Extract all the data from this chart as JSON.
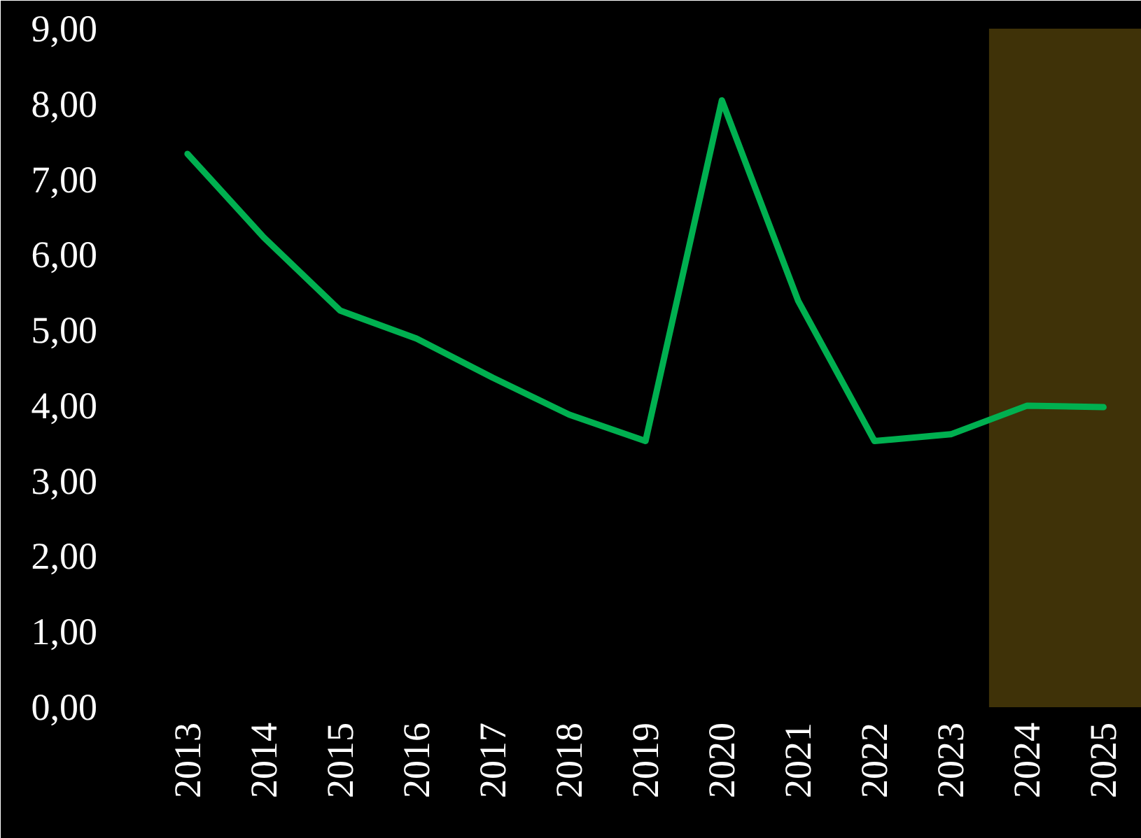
{
  "chart_data": {
    "type": "line",
    "categories": [
      "2013",
      "2014",
      "2015",
      "2016",
      "2017",
      "2018",
      "2019",
      "2020",
      "2021",
      "2022",
      "2023",
      "2024",
      "2025"
    ],
    "series": [
      {
        "color": "#00b050",
        "values": [
          7.34,
          6.23,
          5.26,
          4.89,
          4.37,
          3.88,
          3.53,
          8.05,
          5.39,
          3.53,
          3.62,
          4.0,
          3.98
        ]
      }
    ],
    "ylim": [
      0,
      9
    ],
    "yticks": [
      {
        "value": 0,
        "label": "0,00"
      },
      {
        "value": 1,
        "label": "1,00"
      },
      {
        "value": 2,
        "label": "2,00"
      },
      {
        "value": 3,
        "label": "3,00"
      },
      {
        "value": 4,
        "label": "4,00"
      },
      {
        "value": 5,
        "label": "5,00"
      },
      {
        "value": 6,
        "label": "6,00"
      },
      {
        "value": 7,
        "label": "7,00"
      },
      {
        "value": 8,
        "label": "8,00"
      },
      {
        "value": 9,
        "label": "9,00"
      }
    ],
    "bands": [
      {
        "axis": "x",
        "from": "2024",
        "to": "2025",
        "color": "#3f3208"
      }
    ],
    "grid": false,
    "marker": "none",
    "line_style": "solid"
  }
}
